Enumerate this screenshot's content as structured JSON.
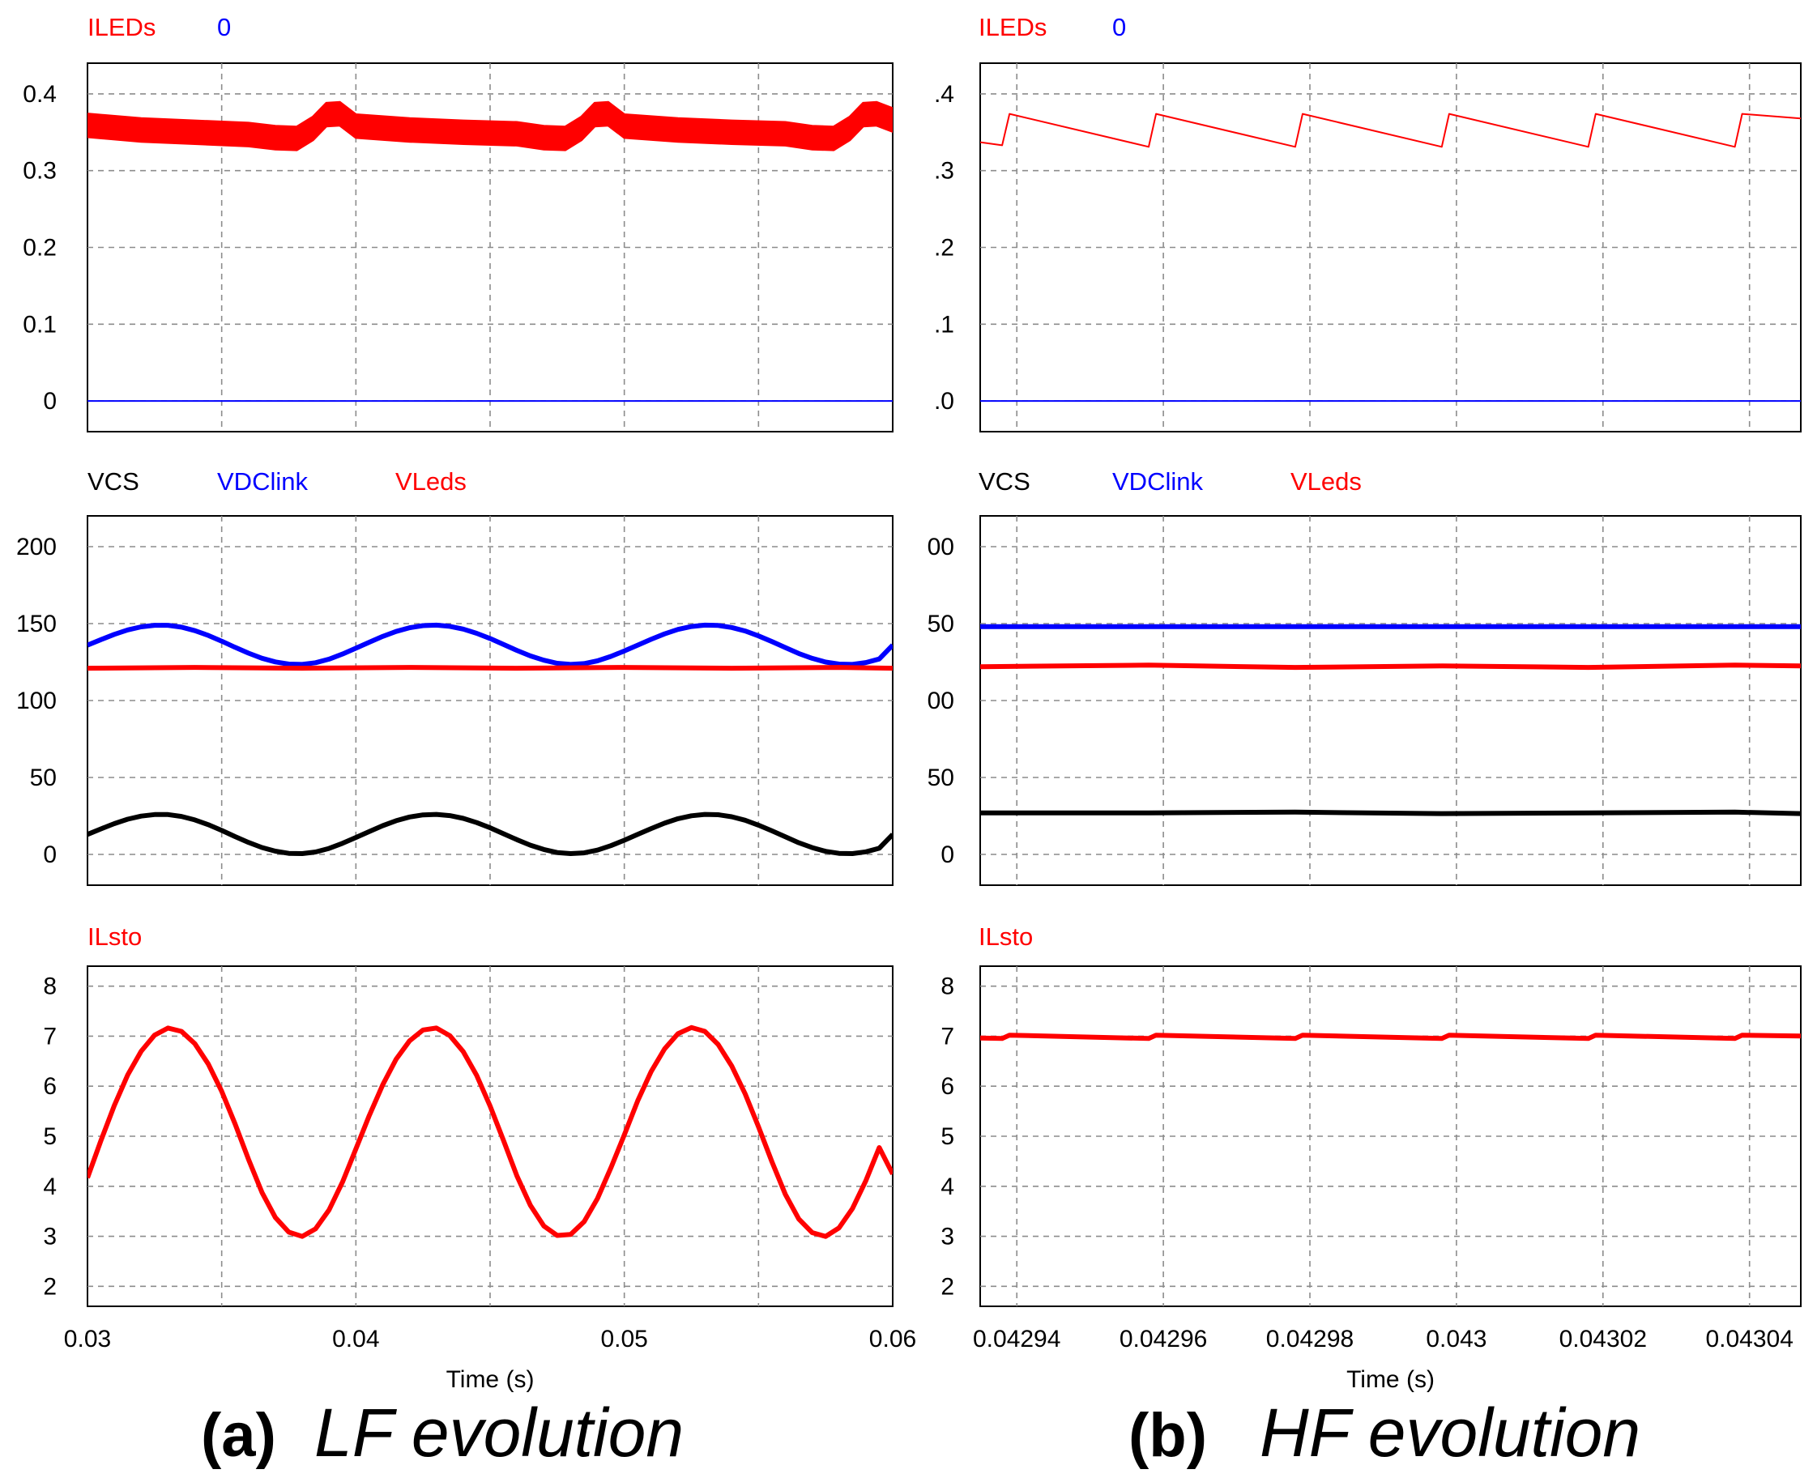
{
  "colors": {
    "red": "#ff0000",
    "blue": "#0000ff",
    "black": "#000000",
    "grid": "#8c8c8c"
  },
  "captions": [
    {
      "letter": "(a)",
      "text": "LF evolution"
    },
    {
      "letter": "(b)",
      "text": "HF evolution"
    }
  ],
  "chart_data": [
    {
      "id": "lf-iled",
      "type": "line",
      "column": 0,
      "row": 0,
      "legend": [
        {
          "label": "ILEDs",
          "color": "#ff0000"
        },
        {
          "label": "0",
          "color": "#0000ff"
        }
      ],
      "xlim": [
        0.03,
        0.06
      ],
      "ylim": [
        -0.04,
        0.44
      ],
      "yticks": [
        "0",
        "0.1",
        "0.2",
        "0.3",
        "0.4"
      ],
      "series": [
        {
          "name": "ILEDs",
          "color": "#ff0000",
          "width": 6,
          "band": 0.03,
          "x": [
            0.03,
            0.032,
            0.034,
            0.036,
            0.037,
            0.0378,
            0.0384,
            0.0389,
            0.0394,
            0.04,
            0.042,
            0.044,
            0.046,
            0.047,
            0.0478,
            0.0484,
            0.0489,
            0.0494,
            0.05,
            0.052,
            0.054,
            0.056,
            0.057,
            0.0578,
            0.0584,
            0.0589,
            0.0594,
            0.06
          ],
          "y": [
            0.359,
            0.353,
            0.35,
            0.347,
            0.343,
            0.342,
            0.355,
            0.373,
            0.374,
            0.358,
            0.353,
            0.35,
            0.348,
            0.343,
            0.342,
            0.355,
            0.373,
            0.374,
            0.358,
            0.353,
            0.35,
            0.348,
            0.343,
            0.342,
            0.355,
            0.373,
            0.374,
            0.366
          ]
        },
        {
          "name": "0",
          "color": "#0000ff",
          "width": 2,
          "x": [
            0.03,
            0.06
          ],
          "y": [
            0,
            0
          ]
        }
      ]
    },
    {
      "id": "hf-iled",
      "type": "line",
      "column": 1,
      "row": 0,
      "legend": [
        {
          "label": "ILEDs",
          "color": "#ff0000"
        },
        {
          "label": "0",
          "color": "#0000ff"
        }
      ],
      "xlim": [
        0.042935,
        0.043047
      ],
      "ylim": [
        -0.04,
        0.44
      ],
      "yticks": [
        ".0",
        ".1",
        ".2",
        ".3",
        ".4"
      ],
      "series": [
        {
          "name": "ILEDs",
          "color": "#ff0000",
          "width": 2,
          "x": [
            0.042935,
            0.042938,
            0.042939,
            0.042958,
            0.042959,
            0.042978,
            0.042979,
            0.042998,
            0.042999,
            0.043018,
            0.043019,
            0.043038,
            0.043039,
            0.043047
          ],
          "y": [
            0.337,
            0.333,
            0.374,
            0.331,
            0.374,
            0.331,
            0.374,
            0.331,
            0.374,
            0.331,
            0.374,
            0.331,
            0.374,
            0.368
          ]
        },
        {
          "name": "0",
          "color": "#0000ff",
          "width": 2,
          "x": [
            0.042935,
            0.043047
          ],
          "y": [
            0,
            0
          ]
        }
      ]
    },
    {
      "id": "lf-voltages",
      "type": "line",
      "column": 0,
      "row": 1,
      "legend": [
        {
          "label": "VCS",
          "color": "#000000"
        },
        {
          "label": "VDClink",
          "color": "#0000ff"
        },
        {
          "label": "VLeds",
          "color": "#ff0000"
        }
      ],
      "xlim": [
        0.03,
        0.06
      ],
      "ylim": [
        -20,
        220
      ],
      "yticks": [
        "0",
        "50",
        "100",
        "150",
        "200"
      ],
      "series": [
        {
          "name": "VCS",
          "color": "#000000",
          "width": 6,
          "x": [
            0.03,
            0.0305,
            0.031,
            0.0315,
            0.032,
            0.0325,
            0.033,
            0.0335,
            0.034,
            0.0345,
            0.035,
            0.0355,
            0.036,
            0.0365,
            0.037,
            0.0375,
            0.038,
            0.0385,
            0.039,
            0.0395,
            0.04,
            0.0405,
            0.041,
            0.0415,
            0.042,
            0.0425,
            0.043,
            0.0435,
            0.044,
            0.0445,
            0.045,
            0.0455,
            0.046,
            0.0465,
            0.047,
            0.0475,
            0.048,
            0.0485,
            0.049,
            0.0495,
            0.05,
            0.0505,
            0.051,
            0.0515,
            0.052,
            0.0525,
            0.053,
            0.0535,
            0.054,
            0.0545,
            0.055,
            0.0555,
            0.056,
            0.0565,
            0.057,
            0.0575,
            0.058,
            0.0585,
            0.059,
            0.0595,
            0.06
          ],
          "y": [
            13.0,
            16.6,
            20.0,
            22.9,
            24.9,
            25.9,
            25.9,
            24.7,
            22.4,
            19.3,
            15.6,
            11.6,
            7.8,
            4.5,
            2.1,
            0.7,
            0.5,
            1.6,
            3.9,
            7.2,
            11.0,
            14.9,
            18.7,
            21.9,
            24.3,
            25.7,
            26.0,
            25.2,
            23.4,
            20.7,
            17.3,
            13.4,
            9.6,
            6.0,
            3.2,
            1.2,
            0.5,
            1.0,
            2.8,
            5.7,
            9.2,
            13.0,
            16.8,
            20.3,
            23.2,
            25.1,
            26.0,
            25.8,
            24.5,
            22.2,
            19.0,
            15.3,
            11.4,
            7.6,
            4.4,
            2.0,
            0.7,
            0.5,
            1.7,
            4.0,
            13.0
          ]
        },
        {
          "name": "VDClink",
          "color": "#0000ff",
          "width": 6,
          "x": [
            0.03,
            0.0305,
            0.031,
            0.0315,
            0.032,
            0.0325,
            0.033,
            0.0335,
            0.034,
            0.0345,
            0.035,
            0.0355,
            0.036,
            0.0365,
            0.037,
            0.0375,
            0.038,
            0.0385,
            0.039,
            0.0395,
            0.04,
            0.0405,
            0.041,
            0.0415,
            0.042,
            0.0425,
            0.043,
            0.0435,
            0.044,
            0.0445,
            0.045,
            0.0455,
            0.046,
            0.0465,
            0.047,
            0.0475,
            0.048,
            0.0485,
            0.049,
            0.0495,
            0.05,
            0.0505,
            0.051,
            0.0515,
            0.052,
            0.0525,
            0.053,
            0.0535,
            0.054,
            0.0545,
            0.055,
            0.0555,
            0.056,
            0.0565,
            0.057,
            0.0575,
            0.058,
            0.0585,
            0.059,
            0.0595,
            0.06
          ],
          "y": [
            136.0,
            139.6,
            143.0,
            145.9,
            147.9,
            148.9,
            148.9,
            147.7,
            145.4,
            142.3,
            138.6,
            134.6,
            130.8,
            127.5,
            125.1,
            123.7,
            123.5,
            124.6,
            126.9,
            130.2,
            134.0,
            137.9,
            141.7,
            144.9,
            147.3,
            148.7,
            149.0,
            148.2,
            146.4,
            143.7,
            140.3,
            136.4,
            132.6,
            129.0,
            126.2,
            124.2,
            123.5,
            124.0,
            125.8,
            128.7,
            132.2,
            136.0,
            139.8,
            143.3,
            146.2,
            148.1,
            149.0,
            148.8,
            147.5,
            145.2,
            142.0,
            138.3,
            134.4,
            130.6,
            127.4,
            125.0,
            123.7,
            123.5,
            124.7,
            127.0,
            136.0
          ]
        },
        {
          "name": "VLeds",
          "color": "#ff0000",
          "width": 6,
          "x": [
            0.03,
            0.034,
            0.038,
            0.042,
            0.046,
            0.05,
            0.054,
            0.058,
            0.06
          ],
          "y": [
            121.0,
            121.5,
            121.0,
            121.5,
            121.0,
            121.5,
            121.0,
            121.5,
            121.0
          ]
        }
      ]
    },
    {
      "id": "hf-voltages",
      "type": "line",
      "column": 1,
      "row": 1,
      "legend": [
        {
          "label": "VCS",
          "color": "#000000"
        },
        {
          "label": "VDClink",
          "color": "#0000ff"
        },
        {
          "label": "VLeds",
          "color": "#ff0000"
        }
      ],
      "xlim": [
        0.042935,
        0.043047
      ],
      "ylim": [
        -20,
        220
      ],
      "yticks": [
        "0",
        "50",
        "00",
        "50",
        "00"
      ],
      "series": [
        {
          "name": "VCS",
          "color": "#000000",
          "width": 6,
          "x": [
            0.042935,
            0.042958,
            0.042978,
            0.042998,
            0.043018,
            0.043038,
            0.043047
          ],
          "y": [
            27.0,
            27.0,
            27.5,
            26.5,
            27.0,
            27.5,
            26.5
          ]
        },
        {
          "name": "VDClink",
          "color": "#0000ff",
          "width": 6,
          "x": [
            0.042935,
            0.043047
          ],
          "y": [
            148.0,
            148.0
          ]
        },
        {
          "name": "VLeds",
          "color": "#ff0000",
          "width": 6,
          "x": [
            0.042935,
            0.042958,
            0.042978,
            0.042998,
            0.043018,
            0.043038,
            0.043047
          ],
          "y": [
            122.0,
            123.0,
            121.5,
            122.5,
            121.5,
            123.0,
            122.5
          ]
        }
      ]
    },
    {
      "id": "lf-ilsto",
      "type": "line",
      "column": 0,
      "row": 2,
      "legend": [
        {
          "label": "ILsto",
          "color": "#ff0000"
        }
      ],
      "xlim": [
        0.03,
        0.06
      ],
      "ylim": [
        1.4,
        8.6
      ],
      "yticks": [
        "2",
        "3",
        "4",
        "5",
        "6",
        "7",
        "8"
      ],
      "xticks": [
        "0.03",
        "0.04",
        "0.05",
        "0.06"
      ],
      "xlabel": "Time (s)",
      "series": [
        {
          "name": "ILsto",
          "color": "#ff0000",
          "width": 6,
          "x": [
            0.03,
            0.0305,
            0.031,
            0.0315,
            0.032,
            0.0325,
            0.033,
            0.0335,
            0.034,
            0.0345,
            0.035,
            0.0355,
            0.036,
            0.0365,
            0.037,
            0.0375,
            0.038,
            0.0385,
            0.039,
            0.0395,
            0.04,
            0.0405,
            0.041,
            0.0415,
            0.042,
            0.0425,
            0.043,
            0.0435,
            0.044,
            0.0445,
            0.045,
            0.0455,
            0.046,
            0.0465,
            0.047,
            0.0475,
            0.048,
            0.0485,
            0.049,
            0.0495,
            0.05,
            0.0505,
            0.051,
            0.0515,
            0.052,
            0.0525,
            0.053,
            0.0535,
            0.054,
            0.0545,
            0.055,
            0.0555,
            0.056,
            0.0565,
            0.057,
            0.0575,
            0.058,
            0.0585,
            0.059,
            0.0595,
            0.06
          ],
          "y": [
            4.12,
            4.91,
            5.65,
            6.3,
            6.8,
            7.14,
            7.29,
            7.22,
            6.96,
            6.53,
            5.95,
            5.26,
            4.51,
            3.81,
            3.28,
            2.97,
            2.88,
            3.04,
            3.44,
            4.03,
            4.73,
            5.44,
            6.09,
            6.63,
            7.02,
            7.25,
            7.29,
            7.13,
            6.79,
            6.29,
            5.64,
            4.91,
            4.16,
            3.54,
            3.1,
            2.9,
            2.92,
            3.19,
            3.68,
            4.33,
            5.03,
            5.75,
            6.37,
            6.85,
            7.17,
            7.3,
            7.22,
            6.94,
            6.49,
            5.9,
            5.2,
            4.46,
            3.77,
            3.25,
            2.96,
            2.88,
            3.06,
            3.47,
            4.06,
            4.76,
            4.2
          ]
        }
      ]
    },
    {
      "id": "hf-ilsto",
      "type": "line",
      "column": 1,
      "row": 2,
      "legend": [
        {
          "label": "ILsto",
          "color": "#ff0000"
        }
      ],
      "xlim": [
        0.042935,
        0.043047
      ],
      "ylim": [
        1.4,
        8.6
      ],
      "yticks": [
        "2",
        "3",
        "4",
        "5",
        "6",
        "7",
        "8"
      ],
      "xticks": [
        "0.04294",
        "0.04296",
        "0.04298",
        "0.043",
        "0.04302",
        "0.04304"
      ],
      "xlabel": "Time (s)",
      "series": [
        {
          "name": "ILsto",
          "color": "#ff0000",
          "width": 6,
          "x": [
            0.042935,
            0.042938,
            0.042939,
            0.042958,
            0.042959,
            0.042978,
            0.042979,
            0.042998,
            0.042999,
            0.043018,
            0.043019,
            0.043038,
            0.043039,
            0.043047
          ],
          "y": [
            7.08,
            7.07,
            7.14,
            7.07,
            7.14,
            7.07,
            7.14,
            7.07,
            7.14,
            7.07,
            7.14,
            7.07,
            7.14,
            7.12
          ]
        }
      ]
    }
  ]
}
